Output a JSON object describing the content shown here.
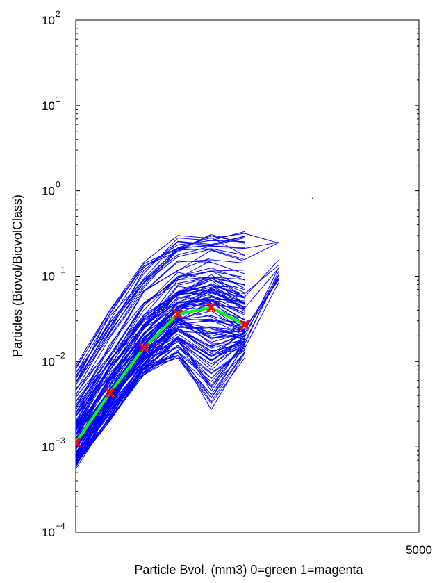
{
  "chart_data": {
    "type": "line",
    "title": "",
    "xlabel": "Particle Bvol. (mm3) 0=green 1=magenta",
    "ylabel": "Particles (Biovol/BiovolClass)",
    "y_scale": "log",
    "ylim": [
      0.0001,
      100
    ],
    "y_ticks": [
      {
        "base": "10",
        "exp": "−4",
        "value": 0.0001
      },
      {
        "base": "10",
        "exp": "−3",
        "value": 0.001
      },
      {
        "base": "10",
        "exp": "−2",
        "value": 0.01
      },
      {
        "base": "10",
        "exp": "−1",
        "value": 0.1
      },
      {
        "base": "10",
        "exp": "0",
        "value": 1
      },
      {
        "base": "10",
        "exp": "1",
        "value": 10
      },
      {
        "base": "10",
        "exp": "2",
        "value": 100
      }
    ],
    "x_tick_label": "5000",
    "grid": false,
    "colors": {
      "individual_profiles": "#0000ff",
      "mean_line": "#00ff00",
      "mean_markers": "#ff0000"
    },
    "x_class_positions": [
      0,
      1,
      2,
      3,
      4,
      5,
      6
    ],
    "mean_series": {
      "x": [
        0,
        1,
        2,
        3,
        4,
        5
      ],
      "y": [
        0.00112,
        0.0043,
        0.0145,
        0.036,
        0.043,
        0.027
      ]
    },
    "profile_envelope": {
      "x": [
        0,
        1,
        2,
        3,
        4,
        5,
        6
      ],
      "upper": [
        0.009,
        0.04,
        0.16,
        0.3,
        0.36,
        0.36,
        0.25
      ],
      "lower": [
        0.0005,
        0.002,
        0.007,
        0.011,
        0.0022,
        0.011,
        0.06
      ]
    },
    "profile_count": 120
  }
}
